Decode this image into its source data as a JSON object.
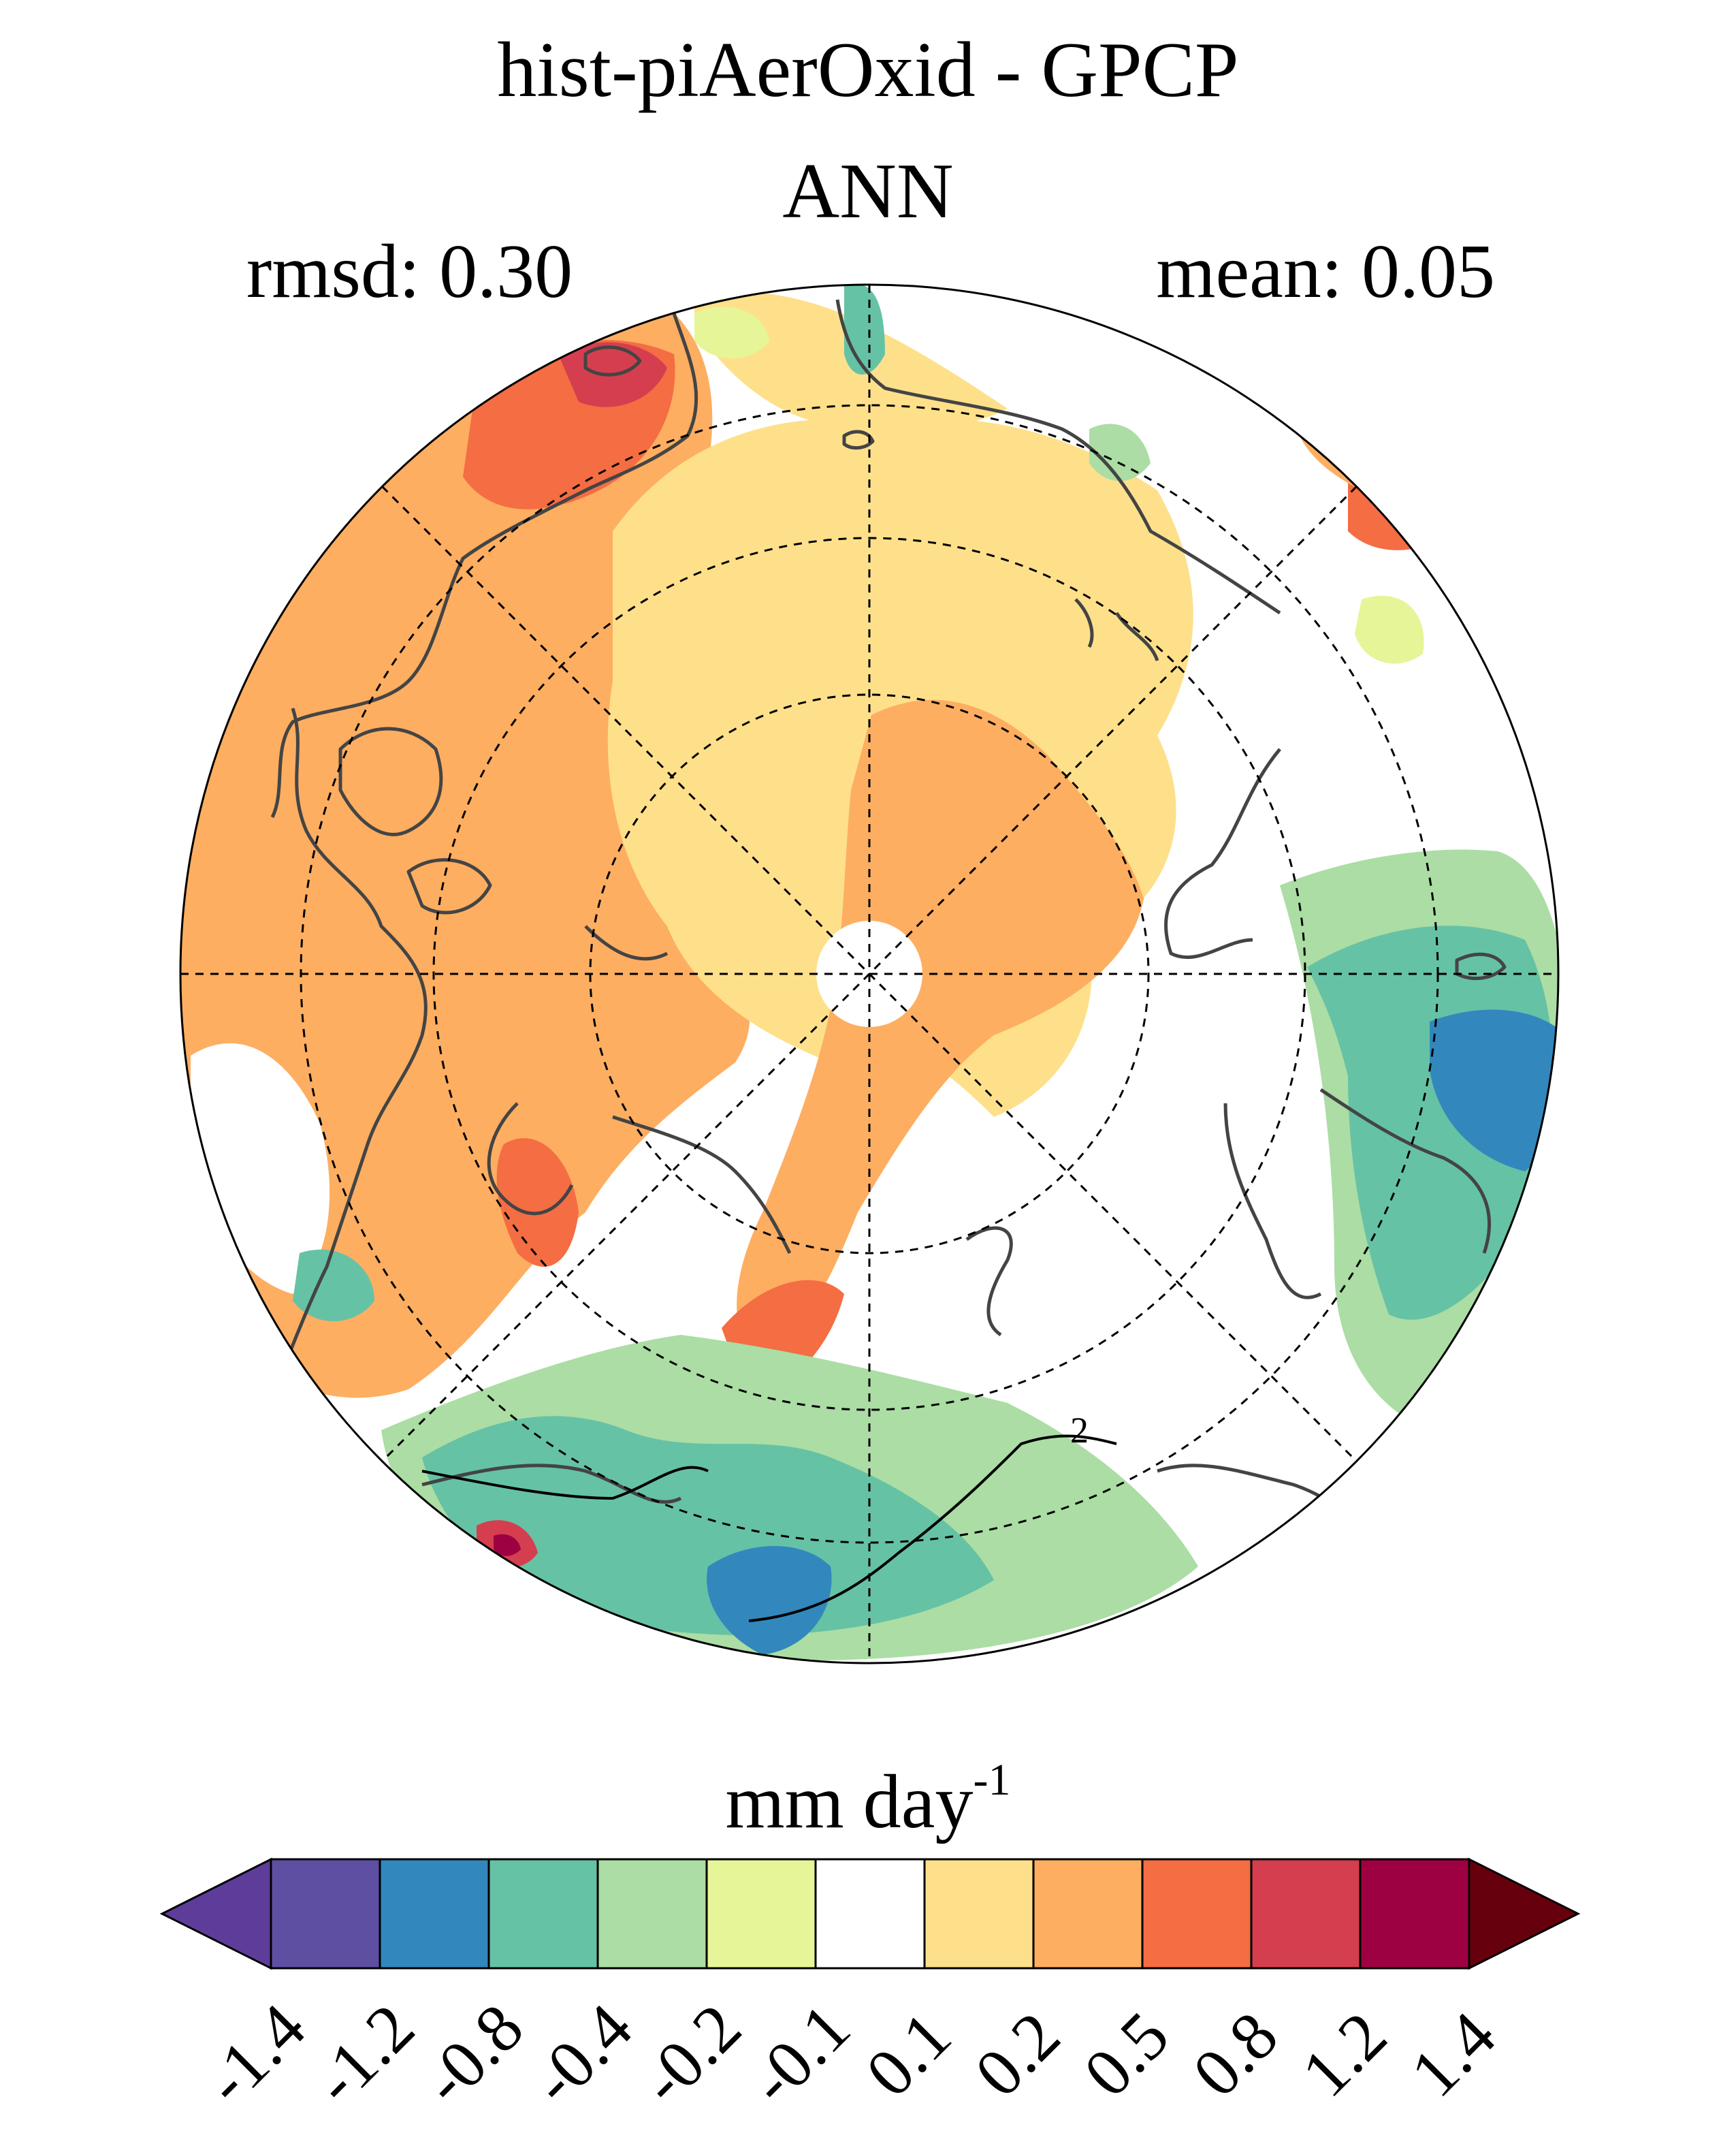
{
  "title": "hist-piAerOxid - GPCP",
  "season": "ANN",
  "rmsd": "rmsd: 0.30",
  "mean": "mean: 0.05",
  "units_base": "mm day",
  "units_exp": "-1",
  "contour_label": "2",
  "colorbar": {
    "labels": [
      "-1.4",
      "-1.2",
      "-0.8",
      "-0.4",
      "-0.2",
      "-0.1",
      "0.1",
      "0.2",
      "0.5",
      "0.8",
      "1.2",
      "1.4"
    ],
    "colors": [
      "#5e3c99",
      "#5f4fa2",
      "#3288bd",
      "#66c2a5",
      "#abdda4",
      "#e6f598",
      "#ffffff",
      "#fee08b",
      "#fdae61",
      "#f46d43",
      "#d53e4f",
      "#9e0142",
      "#67000d"
    ]
  },
  "colors": {
    "land_outline": "#444444",
    "pole_fill": "#ffffff"
  }
}
